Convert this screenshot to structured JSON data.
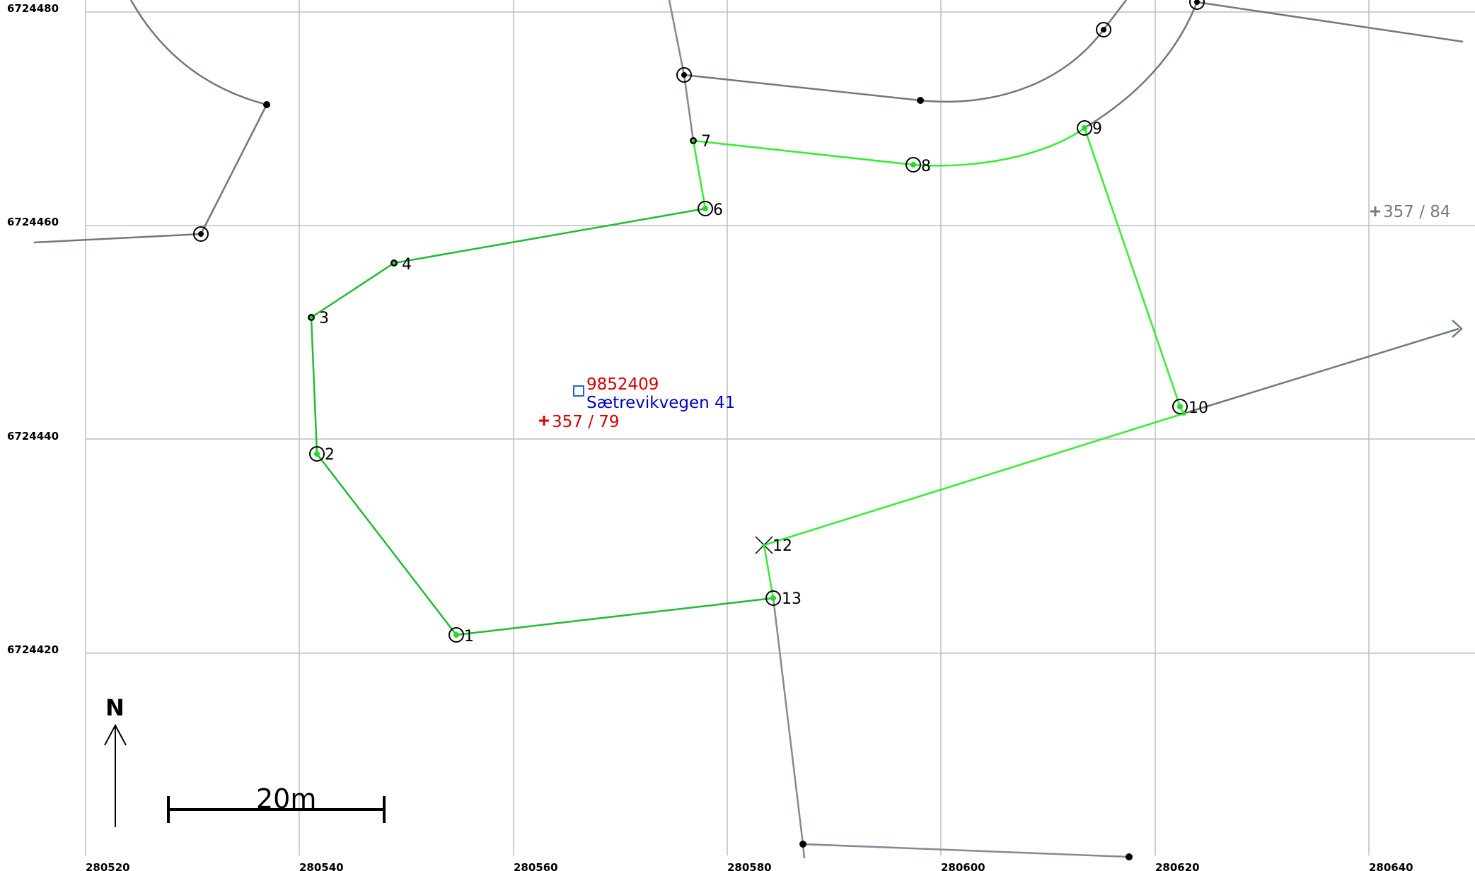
{
  "colors": {
    "grid": "#bdbdbd",
    "boundary": "#22cc22",
    "boundary_bright": "#33ee33",
    "neighbor": "#6f7a76",
    "road": "#8f8296",
    "building_id": "#d40000",
    "address": "#0000c8",
    "parcel_other": "#7a7a7a"
  },
  "grid": {
    "x_labels": [
      "280520",
      "280540",
      "280560",
      "280580",
      "280600",
      "280620",
      "280640"
    ],
    "y_labels": [
      "6724480",
      "6724460",
      "6724440",
      "6724420"
    ]
  },
  "boundary_points": [
    {
      "label": "1"
    },
    {
      "label": "2"
    },
    {
      "label": "3"
    },
    {
      "label": "4"
    },
    {
      "label": "6"
    },
    {
      "label": "7"
    },
    {
      "label": "8"
    },
    {
      "label": "9"
    },
    {
      "label": "10"
    },
    {
      "label": "12"
    },
    {
      "label": "13"
    }
  ],
  "building": {
    "id": "9852409"
  },
  "address": {
    "text": "Sætrevikvegen 41"
  },
  "parcel": {
    "label": "357 / 79"
  },
  "parcel_neighbor": {
    "label": "357 / 84"
  },
  "north": {
    "label": "N"
  },
  "scale": {
    "label": "20m"
  }
}
